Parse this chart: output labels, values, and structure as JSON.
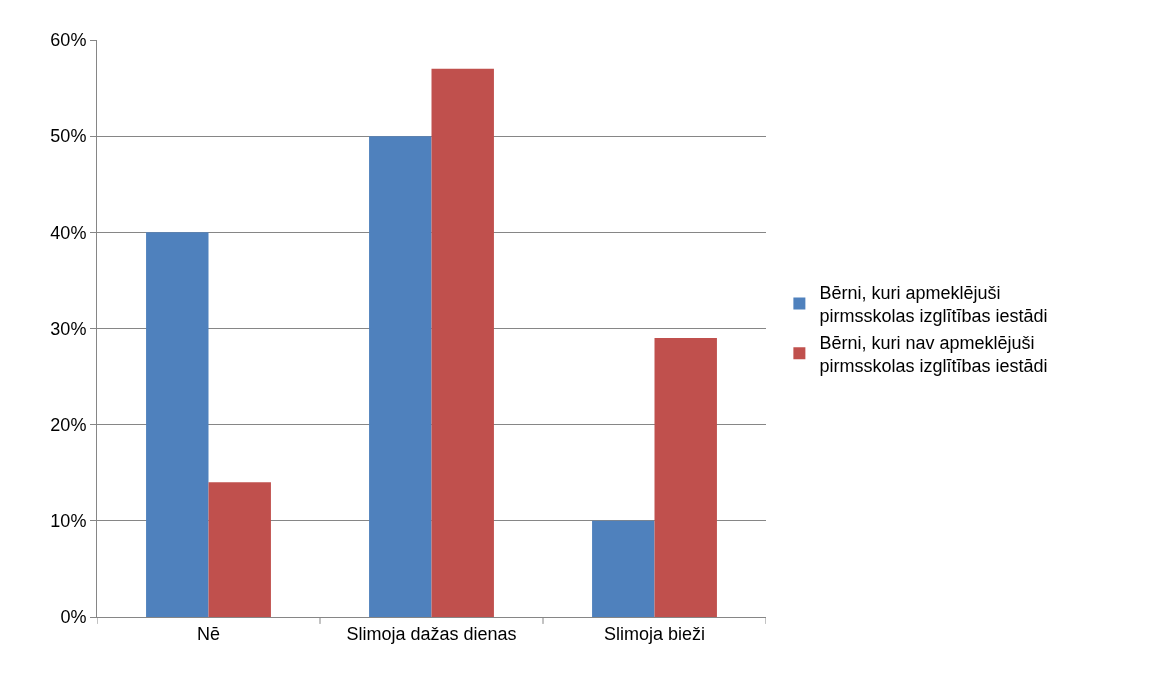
{
  "chart_data": {
    "type": "bar",
    "categories": [
      "Nē",
      "Slimoja dažas dienas",
      "Slimoja bieži"
    ],
    "series": [
      {
        "name": "Bērni, kuri apmeklējuši pirmsskolas izglītības iestādi",
        "color": "#4f81bd",
        "values": [
          40,
          50,
          10
        ]
      },
      {
        "name": "Bērni, kuri nav apmeklējuši pirmsskolas izglītības iestādi",
        "color": "#c0504d",
        "values": [
          14,
          57,
          29
        ]
      }
    ],
    "ylim": [
      0,
      60
    ],
    "yticks": [
      {
        "value": 0,
        "label": "0%"
      },
      {
        "value": 10,
        "label": "10%"
      },
      {
        "value": 20,
        "label": "20%"
      },
      {
        "value": 30,
        "label": "30%"
      },
      {
        "value": 40,
        "label": "40%"
      },
      {
        "value": 50,
        "label": "50%"
      },
      {
        "value": 60,
        "label": "60%"
      }
    ],
    "grid": "y",
    "legend": "right"
  }
}
